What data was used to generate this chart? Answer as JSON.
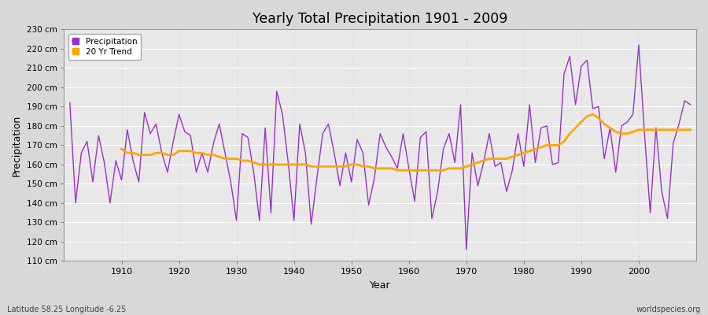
{
  "title": "Yearly Total Precipitation 1901 - 2009",
  "xlabel": "Year",
  "ylabel": "Precipitation",
  "subtitle_left": "Latitude 58.25 Longitude -6.25",
  "subtitle_right": "worldspecies.org",
  "ylim": [
    110,
    230
  ],
  "ytick_labels": [
    "110 cm",
    "120 cm",
    "130 cm",
    "140 cm",
    "150 cm",
    "160 cm",
    "170 cm",
    "180 cm",
    "190 cm",
    "200 cm",
    "210 cm",
    "220 cm",
    "230 cm"
  ],
  "ytick_values": [
    110,
    120,
    130,
    140,
    150,
    160,
    170,
    180,
    190,
    200,
    210,
    220,
    230
  ],
  "xticks": [
    1910,
    1920,
    1930,
    1940,
    1950,
    1960,
    1970,
    1980,
    1990,
    2000
  ],
  "xlim": [
    1900,
    2010
  ],
  "precip_color": "#9932CC",
  "trend_color": "#FFA500",
  "fig_bg_color": "#d8d8d8",
  "plot_bg_color": "#e8e8e8",
  "years": [
    1901,
    1902,
    1903,
    1904,
    1905,
    1906,
    1907,
    1908,
    1909,
    1910,
    1911,
    1912,
    1913,
    1914,
    1915,
    1916,
    1917,
    1918,
    1919,
    1920,
    1921,
    1922,
    1923,
    1924,
    1925,
    1926,
    1927,
    1928,
    1929,
    1930,
    1931,
    1932,
    1933,
    1934,
    1935,
    1936,
    1937,
    1938,
    1939,
    1940,
    1941,
    1942,
    1943,
    1944,
    1945,
    1946,
    1947,
    1948,
    1949,
    1950,
    1951,
    1952,
    1953,
    1954,
    1955,
    1956,
    1957,
    1958,
    1959,
    1960,
    1961,
    1962,
    1963,
    1964,
    1965,
    1966,
    1967,
    1968,
    1969,
    1970,
    1971,
    1972,
    1973,
    1974,
    1975,
    1976,
    1977,
    1978,
    1979,
    1980,
    1981,
    1982,
    1983,
    1984,
    1985,
    1986,
    1987,
    1988,
    1989,
    1990,
    1991,
    1992,
    1993,
    1994,
    1995,
    1996,
    1997,
    1998,
    1999,
    2000,
    2001,
    2002,
    2003,
    2004,
    2005,
    2006,
    2007,
    2008,
    2009
  ],
  "precipitation": [
    192,
    140,
    166,
    172,
    151,
    175,
    161,
    140,
    162,
    152,
    178,
    162,
    151,
    187,
    176,
    181,
    166,
    156,
    172,
    186,
    177,
    175,
    156,
    166,
    156,
    171,
    181,
    166,
    151,
    131,
    176,
    174,
    156,
    131,
    179,
    135,
    198,
    186,
    161,
    131,
    181,
    166,
    129,
    153,
    176,
    181,
    166,
    149,
    166,
    151,
    173,
    166,
    139,
    153,
    176,
    169,
    164,
    158,
    176,
    158,
    141,
    174,
    177,
    132,
    146,
    168,
    176,
    161,
    191,
    116,
    166,
    149,
    161,
    176,
    159,
    161,
    146,
    157,
    176,
    159,
    191,
    161,
    179,
    180,
    160,
    161,
    207,
    216,
    191,
    211,
    214,
    189,
    190,
    163,
    179,
    156,
    180,
    182,
    186,
    222,
    176,
    135,
    179,
    146,
    132,
    171,
    181,
    193,
    191
  ],
  "trend": [
    null,
    null,
    null,
    null,
    null,
    null,
    null,
    null,
    null,
    168,
    166,
    166,
    165,
    165,
    165,
    166,
    166,
    165,
    165,
    167,
    167,
    167,
    166,
    166,
    165,
    165,
    164,
    163,
    163,
    163,
    162,
    162,
    161,
    160,
    160,
    160,
    160,
    160,
    160,
    160,
    160,
    160,
    159,
    159,
    159,
    159,
    159,
    159,
    159,
    160,
    160,
    159,
    159,
    158,
    158,
    158,
    158,
    157,
    157,
    157,
    157,
    157,
    157,
    157,
    157,
    157,
    158,
    158,
    158,
    159,
    160,
    161,
    162,
    163,
    163,
    163,
    163,
    164,
    165,
    166,
    167,
    168,
    169,
    170,
    170,
    170,
    172,
    176,
    179,
    182,
    185,
    186,
    184,
    181,
    179,
    177,
    176,
    176,
    177,
    178,
    178,
    178,
    178,
    178,
    178,
    178,
    178,
    178,
    178
  ]
}
